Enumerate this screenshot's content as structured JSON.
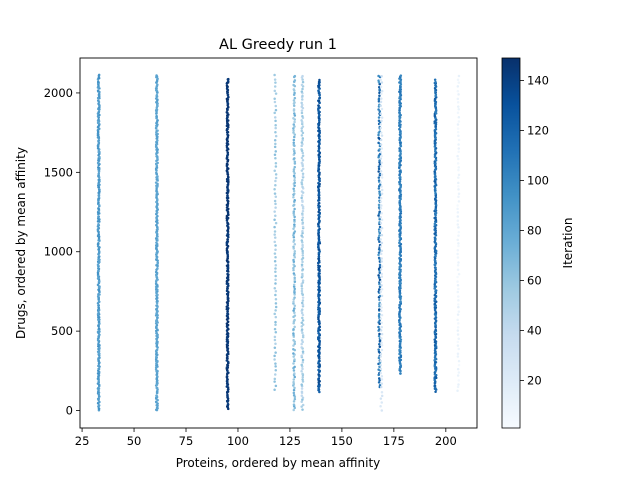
{
  "chart_data": {
    "type": "scatter",
    "title": "AL Greedy run 1",
    "xlabel": "Proteins, ordered by mean affinity",
    "ylabel": "Drugs, ordered by mean affinity",
    "xlim": [
      24,
      215
    ],
    "ylim": [
      -110,
      2220
    ],
    "xticks": [
      25,
      50,
      75,
      100,
      125,
      150,
      175,
      200
    ],
    "yticks": [
      0,
      500,
      1000,
      1500,
      2000
    ],
    "grid": false,
    "colormap": "Blues",
    "colorbar": {
      "label": "Iteration",
      "range": [
        1,
        149
      ],
      "ticks": [
        20,
        40,
        60,
        80,
        100,
        120,
        140
      ],
      "colors": [
        "#f7fbff",
        "#deebf7",
        "#c6dbef",
        "#9ecae1",
        "#6baed6",
        "#4292c6",
        "#2171b5",
        "#08519c",
        "#08306b"
      ]
    },
    "columns": [
      {
        "x": 33,
        "y_range": [
          0,
          2110
        ],
        "iteration": 88,
        "density": "dense",
        "variation": 8
      },
      {
        "x": 61,
        "y_range": [
          0,
          2110
        ],
        "iteration": 82,
        "density": "dense",
        "variation": 5
      },
      {
        "x": 95,
        "y_range": [
          10,
          2090
        ],
        "iteration": 145,
        "density": "dense",
        "variation": 3
      },
      {
        "x": 118,
        "y_range": [
          130,
          2110
        ],
        "iteration": 55,
        "density": "sparse",
        "variation": 10
      },
      {
        "x": 127,
        "y_range": [
          0,
          2110
        ],
        "iteration": 65,
        "density": "medium",
        "variation": 15
      },
      {
        "x": 131,
        "y_range": [
          10,
          2110
        ],
        "iteration": 50,
        "density": "medium",
        "variation": 12
      },
      {
        "x": 139,
        "y_range": [
          120,
          2080
        ],
        "iteration": 128,
        "density": "dense",
        "variation": 8
      },
      {
        "x": 168,
        "y_range": [
          150,
          2110
        ],
        "iteration": 110,
        "density": "medium",
        "variation": 25
      },
      {
        "x": 169,
        "y_range": [
          0,
          2110
        ],
        "iteration": 25,
        "density": "sparse",
        "variation": 10
      },
      {
        "x": 178,
        "y_range": [
          230,
          2110
        ],
        "iteration": 105,
        "density": "dense",
        "variation": 8
      },
      {
        "x": 195,
        "y_range": [
          120,
          2080
        ],
        "iteration": 115,
        "density": "dense",
        "variation": 12
      },
      {
        "x": 206,
        "y_range": [
          120,
          2110
        ],
        "iteration": 8,
        "density": "sparse",
        "variation": 5
      }
    ]
  }
}
